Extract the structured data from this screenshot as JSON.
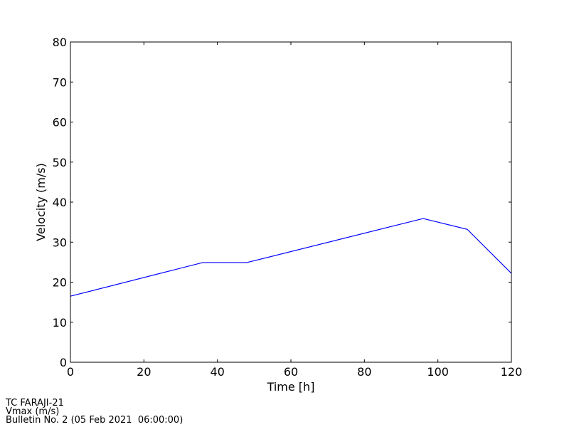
{
  "chart_data": {
    "type": "line",
    "xlabel": "Time [h]",
    "ylabel": "Velocity (m/s)",
    "x": [
      0,
      36,
      48,
      96,
      108,
      120
    ],
    "values": [
      16.5,
      24.9,
      24.9,
      35.9,
      33.2,
      22.2
    ],
    "color": "#0000ff",
    "xlim": [
      0,
      120
    ],
    "xticks": [
      0,
      20,
      40,
      60,
      80,
      100,
      120
    ],
    "ylim": [
      0,
      80
    ],
    "yticks": [
      0,
      10,
      20,
      30,
      40,
      50,
      60,
      70,
      80
    ],
    "grid": false,
    "annotations": [
      "TC FARAJI-21",
      "Vmax (m/s)",
      "Bulletin No. 2 (05 Feb 2021  06:00:00)"
    ]
  }
}
